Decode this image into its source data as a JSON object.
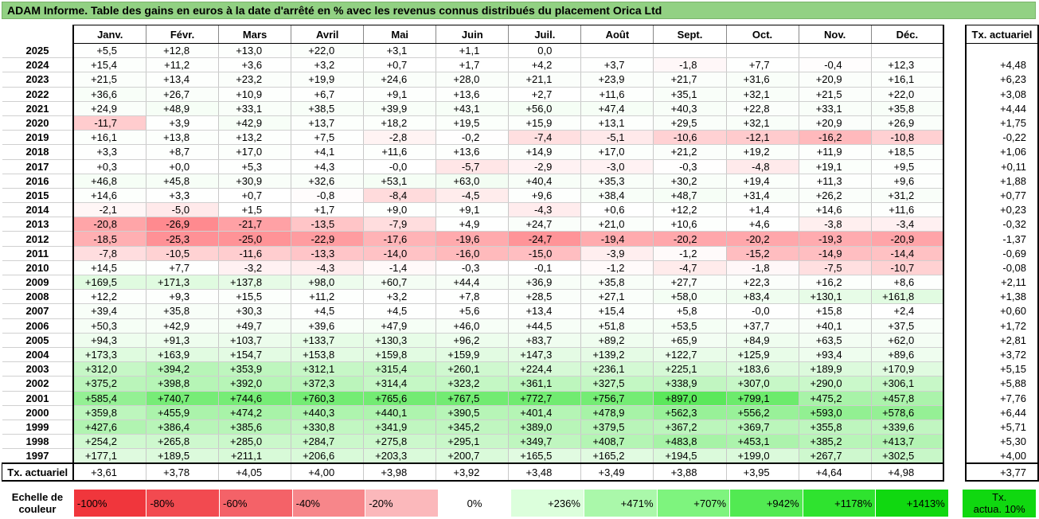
{
  "title": "ADAM Informe. Table des gains en euros à la date d'arrêté en % avec les revenus connus distribués du placement Orica Ltd",
  "months": [
    "Janv.",
    "Févr.",
    "Mars",
    "Avril",
    "Mai",
    "Juin",
    "Juil.",
    "Août",
    "Sept.",
    "Oct.",
    "Nov.",
    "Déc."
  ],
  "ta_header": "Tx. actuariel",
  "rows": [
    {
      "year": "2025",
      "cells": [
        "+5,5",
        "+12,8",
        "+13,0",
        "+22,0",
        "+3,1",
        "+1,1",
        "0,0",
        "",
        "",
        "",
        "",
        ""
      ],
      "ta": ""
    },
    {
      "year": "2024",
      "cells": [
        "+15,4",
        "+11,2",
        "+3,6",
        "+3,2",
        "+0,7",
        "+1,7",
        "+4,2",
        "+3,7",
        "-1,8",
        "+7,7",
        "-0,4",
        "+12,3"
      ],
      "ta": "+4,48"
    },
    {
      "year": "2023",
      "cells": [
        "+21,5",
        "+13,4",
        "+23,2",
        "+19,9",
        "+24,6",
        "+28,0",
        "+21,1",
        "+23,9",
        "+21,7",
        "+31,6",
        "+20,9",
        "+16,1"
      ],
      "ta": "+6,23"
    },
    {
      "year": "2022",
      "cells": [
        "+36,6",
        "+26,7",
        "+10,9",
        "+6,7",
        "+9,1",
        "+13,6",
        "+2,7",
        "+11,6",
        "+35,1",
        "+32,1",
        "+21,5",
        "+22,0"
      ],
      "ta": "+3,08"
    },
    {
      "year": "2021",
      "cells": [
        "+24,9",
        "+48,9",
        "+33,1",
        "+38,5",
        "+39,9",
        "+43,1",
        "+56,0",
        "+47,4",
        "+40,3",
        "+22,8",
        "+33,1",
        "+35,8"
      ],
      "ta": "+4,44"
    },
    {
      "year": "2020",
      "cells": [
        "-11,7",
        "+3,9",
        "+42,9",
        "+13,7",
        "+18,2",
        "+19,5",
        "+15,9",
        "+13,1",
        "+29,5",
        "+32,1",
        "+20,9",
        "+26,9"
      ],
      "ta": "+1,75"
    },
    {
      "year": "2019",
      "cells": [
        "+16,1",
        "+13,8",
        "+13,2",
        "+7,5",
        "-2,8",
        "-0,2",
        "-7,4",
        "-5,1",
        "-10,6",
        "-12,1",
        "-16,2",
        "-10,8"
      ],
      "ta": "-0,22"
    },
    {
      "year": "2018",
      "cells": [
        "+3,3",
        "+8,7",
        "+17,0",
        "+4,1",
        "+11,6",
        "+13,6",
        "+14,9",
        "+17,0",
        "+21,2",
        "+19,2",
        "+11,9",
        "+18,5"
      ],
      "ta": "+1,06"
    },
    {
      "year": "2017",
      "cells": [
        "+0,3",
        "+0,0",
        "+5,3",
        "+4,3",
        "-0,0",
        "-5,7",
        "-2,9",
        "-3,0",
        "-0,3",
        "-4,8",
        "+19,1",
        "+9,5"
      ],
      "ta": "+0,11"
    },
    {
      "year": "2016",
      "cells": [
        "+46,8",
        "+45,8",
        "+30,9",
        "+32,6",
        "+53,1",
        "+63,0",
        "+40,4",
        "+35,3",
        "+30,2",
        "+19,4",
        "+11,3",
        "+9,6"
      ],
      "ta": "+1,88"
    },
    {
      "year": "2015",
      "cells": [
        "+14,6",
        "+3,3",
        "+0,7",
        "-0,8",
        "-8,4",
        "-4,5",
        "+9,6",
        "+38,4",
        "+48,7",
        "+31,4",
        "+26,2",
        "+31,2"
      ],
      "ta": "+0,77"
    },
    {
      "year": "2014",
      "cells": [
        "-2,1",
        "-5,0",
        "+1,5",
        "+1,7",
        "+9,0",
        "+9,1",
        "-4,3",
        "+0,6",
        "+12,2",
        "+1,4",
        "+14,6",
        "+11,6"
      ],
      "ta": "+0,23"
    },
    {
      "year": "2013",
      "cells": [
        "-20,8",
        "-26,9",
        "-21,7",
        "-13,5",
        "-7,9",
        "+4,9",
        "+24,7",
        "+21,0",
        "+10,6",
        "+4,6",
        "-3,8",
        "-3,4"
      ],
      "ta": "-0,32"
    },
    {
      "year": "2012",
      "cells": [
        "-18,5",
        "-25,3",
        "-25,0",
        "-22,9",
        "-17,6",
        "-19,6",
        "-24,7",
        "-19,4",
        "-20,2",
        "-20,2",
        "-19,3",
        "-20,9"
      ],
      "ta": "-1,37"
    },
    {
      "year": "2011",
      "cells": [
        "-7,8",
        "-10,5",
        "-11,6",
        "-13,3",
        "-14,0",
        "-16,0",
        "-15,0",
        "-3,9",
        "-1,2",
        "-15,2",
        "-14,9",
        "-14,4"
      ],
      "ta": "-0,69"
    },
    {
      "year": "2010",
      "cells": [
        "+14,5",
        "+7,7",
        "-3,2",
        "-4,3",
        "-1,4",
        "-0,3",
        "-0,1",
        "-1,2",
        "-4,7",
        "-1,8",
        "-7,5",
        "-10,7"
      ],
      "ta": "-0,08"
    },
    {
      "year": "2009",
      "cells": [
        "+169,5",
        "+171,3",
        "+137,8",
        "+98,0",
        "+60,7",
        "+44,4",
        "+36,9",
        "+35,8",
        "+27,7",
        "+22,3",
        "+16,2",
        "+8,6"
      ],
      "ta": "+2,11"
    },
    {
      "year": "2008",
      "cells": [
        "+12,2",
        "+9,3",
        "+15,5",
        "+11,2",
        "+3,2",
        "+7,8",
        "+28,5",
        "+27,1",
        "+58,0",
        "+83,4",
        "+130,1",
        "+161,8"
      ],
      "ta": "+1,38"
    },
    {
      "year": "2007",
      "cells": [
        "+39,4",
        "+35,8",
        "+30,3",
        "+4,5",
        "+4,5",
        "+5,6",
        "+13,4",
        "+15,4",
        "+5,8",
        "-0,0",
        "+15,8",
        "+2,4"
      ],
      "ta": "+0,60"
    },
    {
      "year": "2006",
      "cells": [
        "+50,3",
        "+42,9",
        "+49,7",
        "+39,6",
        "+47,9",
        "+46,0",
        "+44,5",
        "+51,8",
        "+53,5",
        "+37,7",
        "+40,1",
        "+37,5"
      ],
      "ta": "+1,72"
    },
    {
      "year": "2005",
      "cells": [
        "+94,3",
        "+91,3",
        "+103,7",
        "+133,7",
        "+130,3",
        "+96,2",
        "+83,7",
        "+89,2",
        "+65,9",
        "+84,9",
        "+63,5",
        "+62,0"
      ],
      "ta": "+2,81"
    },
    {
      "year": "2004",
      "cells": [
        "+173,3",
        "+163,9",
        "+154,7",
        "+153,8",
        "+159,8",
        "+159,9",
        "+147,3",
        "+139,2",
        "+122,7",
        "+125,9",
        "+93,4",
        "+89,6"
      ],
      "ta": "+3,72"
    },
    {
      "year": "2003",
      "cells": [
        "+312,0",
        "+394,2",
        "+353,9",
        "+312,1",
        "+315,4",
        "+260,1",
        "+224,4",
        "+236,1",
        "+225,1",
        "+183,6",
        "+189,9",
        "+170,9"
      ],
      "ta": "+5,15"
    },
    {
      "year": "2002",
      "cells": [
        "+375,2",
        "+398,8",
        "+392,0",
        "+372,3",
        "+314,4",
        "+323,2",
        "+361,1",
        "+327,5",
        "+338,9",
        "+307,0",
        "+290,0",
        "+306,1"
      ],
      "ta": "+5,88"
    },
    {
      "year": "2001",
      "cells": [
        "+585,4",
        "+740,7",
        "+744,6",
        "+760,3",
        "+765,6",
        "+767,5",
        "+772,7",
        "+756,7",
        "+897,0",
        "+799,1",
        "+475,2",
        "+457,8"
      ],
      "ta": "+7,76"
    },
    {
      "year": "2000",
      "cells": [
        "+359,8",
        "+455,9",
        "+474,2",
        "+440,3",
        "+440,1",
        "+390,5",
        "+401,4",
        "+478,9",
        "+562,3",
        "+556,2",
        "+593,0",
        "+578,6"
      ],
      "ta": "+6,44"
    },
    {
      "year": "1999",
      "cells": [
        "+427,6",
        "+386,4",
        "+385,6",
        "+330,8",
        "+341,9",
        "+345,2",
        "+389,0",
        "+379,5",
        "+367,2",
        "+369,7",
        "+355,8",
        "+339,6"
      ],
      "ta": "+5,71"
    },
    {
      "year": "1998",
      "cells": [
        "+254,2",
        "+265,8",
        "+285,0",
        "+284,7",
        "+275,8",
        "+295,1",
        "+349,7",
        "+408,7",
        "+483,8",
        "+453,1",
        "+385,2",
        "+413,7"
      ],
      "ta": "+5,30"
    },
    {
      "year": "1997",
      "cells": [
        "+177,1",
        "+189,5",
        "+211,1",
        "+206,6",
        "+203,3",
        "+200,7",
        "+165,5",
        "+165,2",
        "+194,5",
        "+199,0",
        "+267,7",
        "+302,5"
      ],
      "ta": "+4,00"
    }
  ],
  "footer": {
    "label": "Tx. actuariel",
    "cells": [
      "+3,61",
      "+3,78",
      "+4,05",
      "+4,00",
      "+3,98",
      "+3,92",
      "+3,48",
      "+3,49",
      "+3,88",
      "+3,95",
      "+4,64",
      "+4,98"
    ],
    "ta": "+3,77"
  },
  "scale": {
    "label_line1": "Echelle de",
    "label_line2": "couleur",
    "items": [
      {
        "label": "-100%",
        "color": "#f0363c",
        "kind": "neg"
      },
      {
        "label": "-80%",
        "color": "#f24a50",
        "kind": "neg"
      },
      {
        "label": "-60%",
        "color": "#f46268",
        "kind": "neg"
      },
      {
        "label": "-40%",
        "color": "#f7868a",
        "kind": "neg"
      },
      {
        "label": "-20%",
        "color": "#fbb8bb",
        "kind": "neg"
      },
      {
        "label": "0%",
        "color": "#ffffff",
        "kind": "mid"
      },
      {
        "label": "+236%",
        "color": "#dcffdc",
        "kind": "pos"
      },
      {
        "label": "+471%",
        "color": "#aaf8aa",
        "kind": "pos"
      },
      {
        "label": "+707%",
        "color": "#7ef47e",
        "kind": "pos"
      },
      {
        "label": "+942%",
        "color": "#52ea52",
        "kind": "pos"
      },
      {
        "label": "+1178%",
        "color": "#2fe32f",
        "kind": "pos"
      },
      {
        "label": "+1413%",
        "color": "#10d810",
        "kind": "pos"
      }
    ],
    "ta_label_line1": "Tx.",
    "ta_label_line2": "actua. 10%",
    "ta_color": "#10d810"
  }
}
